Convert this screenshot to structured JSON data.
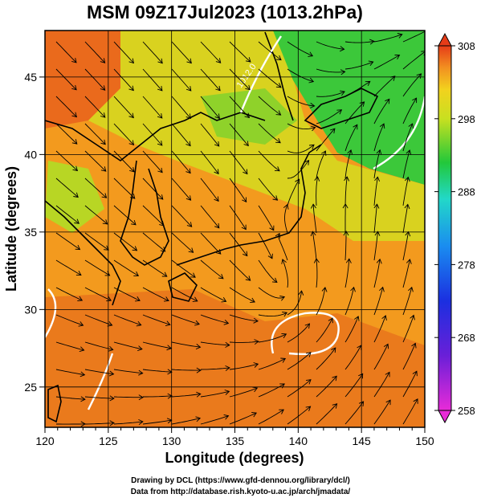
{
  "title": "MSM 09Z17Jul2023 (1013.2hPa)",
  "axes": {
    "xlabel": "Longitude (degrees)",
    "ylabel": "Latitude (degrees)",
    "lon_range": [
      120,
      150
    ],
    "lat_range": [
      22.4,
      48
    ],
    "lon_ticks": [
      "120",
      "125",
      "130",
      "135",
      "140",
      "145",
      "150"
    ],
    "lat_ticks": [
      "25",
      "30",
      "35",
      "40",
      "45"
    ]
  },
  "colorbar": {
    "min": 258,
    "max": 308,
    "labels": [
      "308",
      "298",
      "288",
      "278",
      "268",
      "258"
    ]
  },
  "contour_label": "1012.0",
  "credits": {
    "line1": "Drawing by DCL (https://www.gfd-dennou.org/library/dcl/)",
    "line2": "Data from http://database.rish.kyoto-u.ac.jp/arch/jmadata/"
  },
  "colors": {
    "hot": "#e8601c",
    "warm": "#f39a1e",
    "mild": "#d9d21f",
    "cool": "#2fc236",
    "contour": "#ffffff",
    "coast": "#000000"
  }
}
